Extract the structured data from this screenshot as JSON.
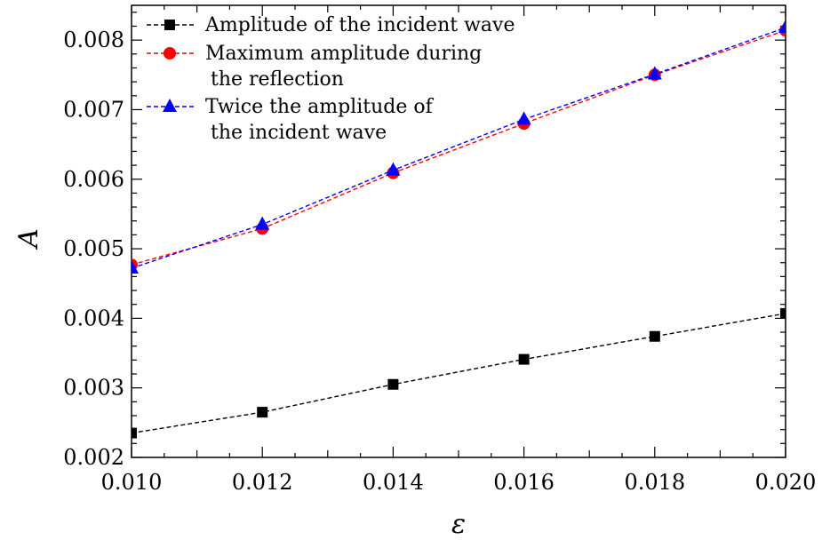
{
  "chart_data": {
    "type": "line",
    "title": "",
    "xlabel": "ε",
    "ylabel": "A",
    "xlim": [
      0.01,
      0.02
    ],
    "ylim": [
      0.002,
      0.0085
    ],
    "xticks": [
      "0.010",
      "0.012",
      "0.014",
      "0.016",
      "0.018",
      "0.020"
    ],
    "yticks": [
      "0.002",
      "0.003",
      "0.004",
      "0.005",
      "0.006",
      "0.007",
      "0.008"
    ],
    "x": [
      0.01,
      0.012,
      0.014,
      0.016,
      0.018,
      0.02
    ],
    "legend_position": "top-left",
    "series": [
      {
        "name": "Amplitude of the incident wave",
        "legend_lines": [
          "Amplitude of the incident wave"
        ],
        "color": "#000000",
        "marker": "square",
        "values": [
          0.00235,
          0.00265,
          0.00305,
          0.00341,
          0.00374,
          0.00407
        ]
      },
      {
        "name": "Maximum amplitude during the reflection",
        "legend_lines": [
          "Maximum amplitude during",
          "the reflection"
        ],
        "color": "#ff0000",
        "marker": "circle",
        "values": [
          0.00477,
          0.00529,
          0.00609,
          0.0068,
          0.0075,
          0.00814
        ]
      },
      {
        "name": "Twice the amplitude of the incident wave",
        "legend_lines": [
          "Twice the amplitude of",
          "the incident wave"
        ],
        "color": "#0000ff",
        "marker": "triangle",
        "values": [
          0.00472,
          0.00535,
          0.00613,
          0.00686,
          0.00751,
          0.00818
        ]
      }
    ]
  }
}
